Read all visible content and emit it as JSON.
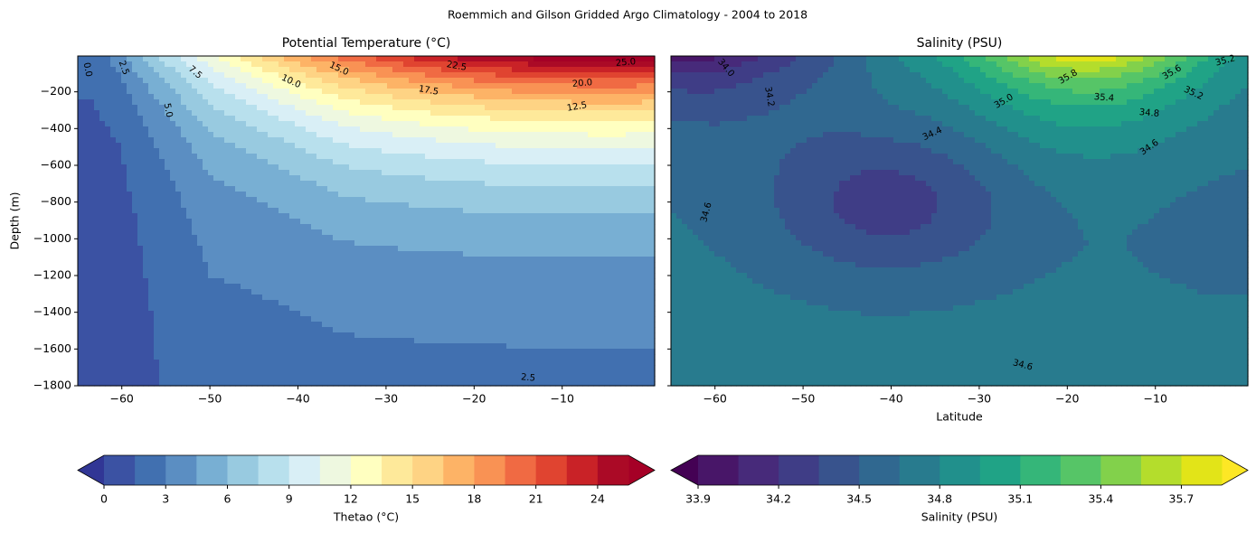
{
  "figure_title": "Roemmich and Gilson Gridded Argo Climatology - 2004 to 2018",
  "chart_data": [
    {
      "type": "contourf",
      "title": "Potential Temperature (°C)",
      "y_label": "Depth (m)",
      "field": "temperature",
      "xlim": [
        -65,
        0.5
      ],
      "ylim": [
        -1800,
        -5
      ],
      "xticks": [
        {
          "value": -60,
          "label": "−60"
        },
        {
          "value": -50,
          "label": "−50"
        },
        {
          "value": -40,
          "label": "−40"
        },
        {
          "value": -30,
          "label": "−30"
        },
        {
          "value": -20,
          "label": "−20"
        },
        {
          "value": -10,
          "label": "−10"
        }
      ],
      "yticks": [
        {
          "value": -200,
          "label": "−200"
        },
        {
          "value": -400,
          "label": "−400"
        },
        {
          "value": -600,
          "label": "−600"
        },
        {
          "value": -800,
          "label": "−800"
        },
        {
          "value": -1000,
          "label": "−1000"
        },
        {
          "value": -1200,
          "label": "−1200"
        },
        {
          "value": -1400,
          "label": "−1400"
        },
        {
          "value": -1600,
          "label": "−1600"
        },
        {
          "value": -1800,
          "label": "−1800"
        }
      ],
      "y_tick_labels": true,
      "levels": [
        0,
        1.5,
        3,
        4.5,
        6,
        7.5,
        9,
        10.5,
        12,
        13.5,
        15,
        16.5,
        18,
        19.5,
        21,
        22.5,
        24,
        25.5
      ],
      "colors": [
        "#3b52a3",
        "#4170b0",
        "#5b8ec2",
        "#78afd3",
        "#98cae0",
        "#b8e0ed",
        "#d9eff6",
        "#eef8e0",
        "#ffffc0",
        "#fee99a",
        "#fed384",
        "#fdb366",
        "#f99254",
        "#f06a43",
        "#e04430",
        "#c92227",
        "#ab0a26"
      ],
      "under_color": "#313695",
      "over_color": "#a50026",
      "colorbar_label": "Thetao (°C)",
      "colorbar_ticks": [
        0,
        3,
        6,
        9,
        12,
        15,
        18,
        21,
        24
      ],
      "contour_labels": [
        "0.0",
        "2.5",
        "7.5",
        "5.0",
        "10.0",
        "15.0",
        "22.5",
        "17.5",
        "20.0",
        "25.0",
        "12.5",
        "2.5"
      ]
    },
    {
      "type": "contourf",
      "title": "Salinity (PSU)",
      "x_label": "Latitude",
      "field": "salinity",
      "xlim": [
        -65,
        0.5
      ],
      "ylim": [
        -1800,
        -5
      ],
      "xticks": [
        {
          "value": -60,
          "label": "−60"
        },
        {
          "value": -50,
          "label": "−50"
        },
        {
          "value": -40,
          "label": "−40"
        },
        {
          "value": -30,
          "label": "−30"
        },
        {
          "value": -20,
          "label": "−20"
        },
        {
          "value": -10,
          "label": "−10"
        }
      ],
      "yticks": [
        -200,
        -400,
        -600,
        -800,
        -1000,
        -1200,
        -1400,
        -1600,
        -1800
      ],
      "y_tick_labels": false,
      "levels": [
        33.9,
        34.05,
        34.2,
        34.35,
        34.5,
        34.65,
        34.8,
        34.95,
        35.1,
        35.25,
        35.4,
        35.55,
        35.7,
        35.85
      ],
      "colors": [
        "#481668",
        "#472a7a",
        "#3f3d86",
        "#38538d",
        "#306890",
        "#287b8e",
        "#21908c",
        "#20a386",
        "#35b679",
        "#56c567",
        "#82d14b",
        "#b4dd2c",
        "#e2e418"
      ],
      "under_color": "#440154",
      "over_color": "#fde725",
      "colorbar_label": "Salinity (PSU)",
      "colorbar_ticks": [
        33.9,
        34.2,
        34.5,
        34.8,
        35.1,
        35.4,
        35.7
      ],
      "contour_labels": [
        "34.0",
        "34.2",
        "35.8",
        "35.6",
        "35.2",
        "35.4",
        "35.2",
        "35.0",
        "34.8",
        "34.4",
        "34.6",
        "34.6",
        "34.6"
      ]
    }
  ]
}
